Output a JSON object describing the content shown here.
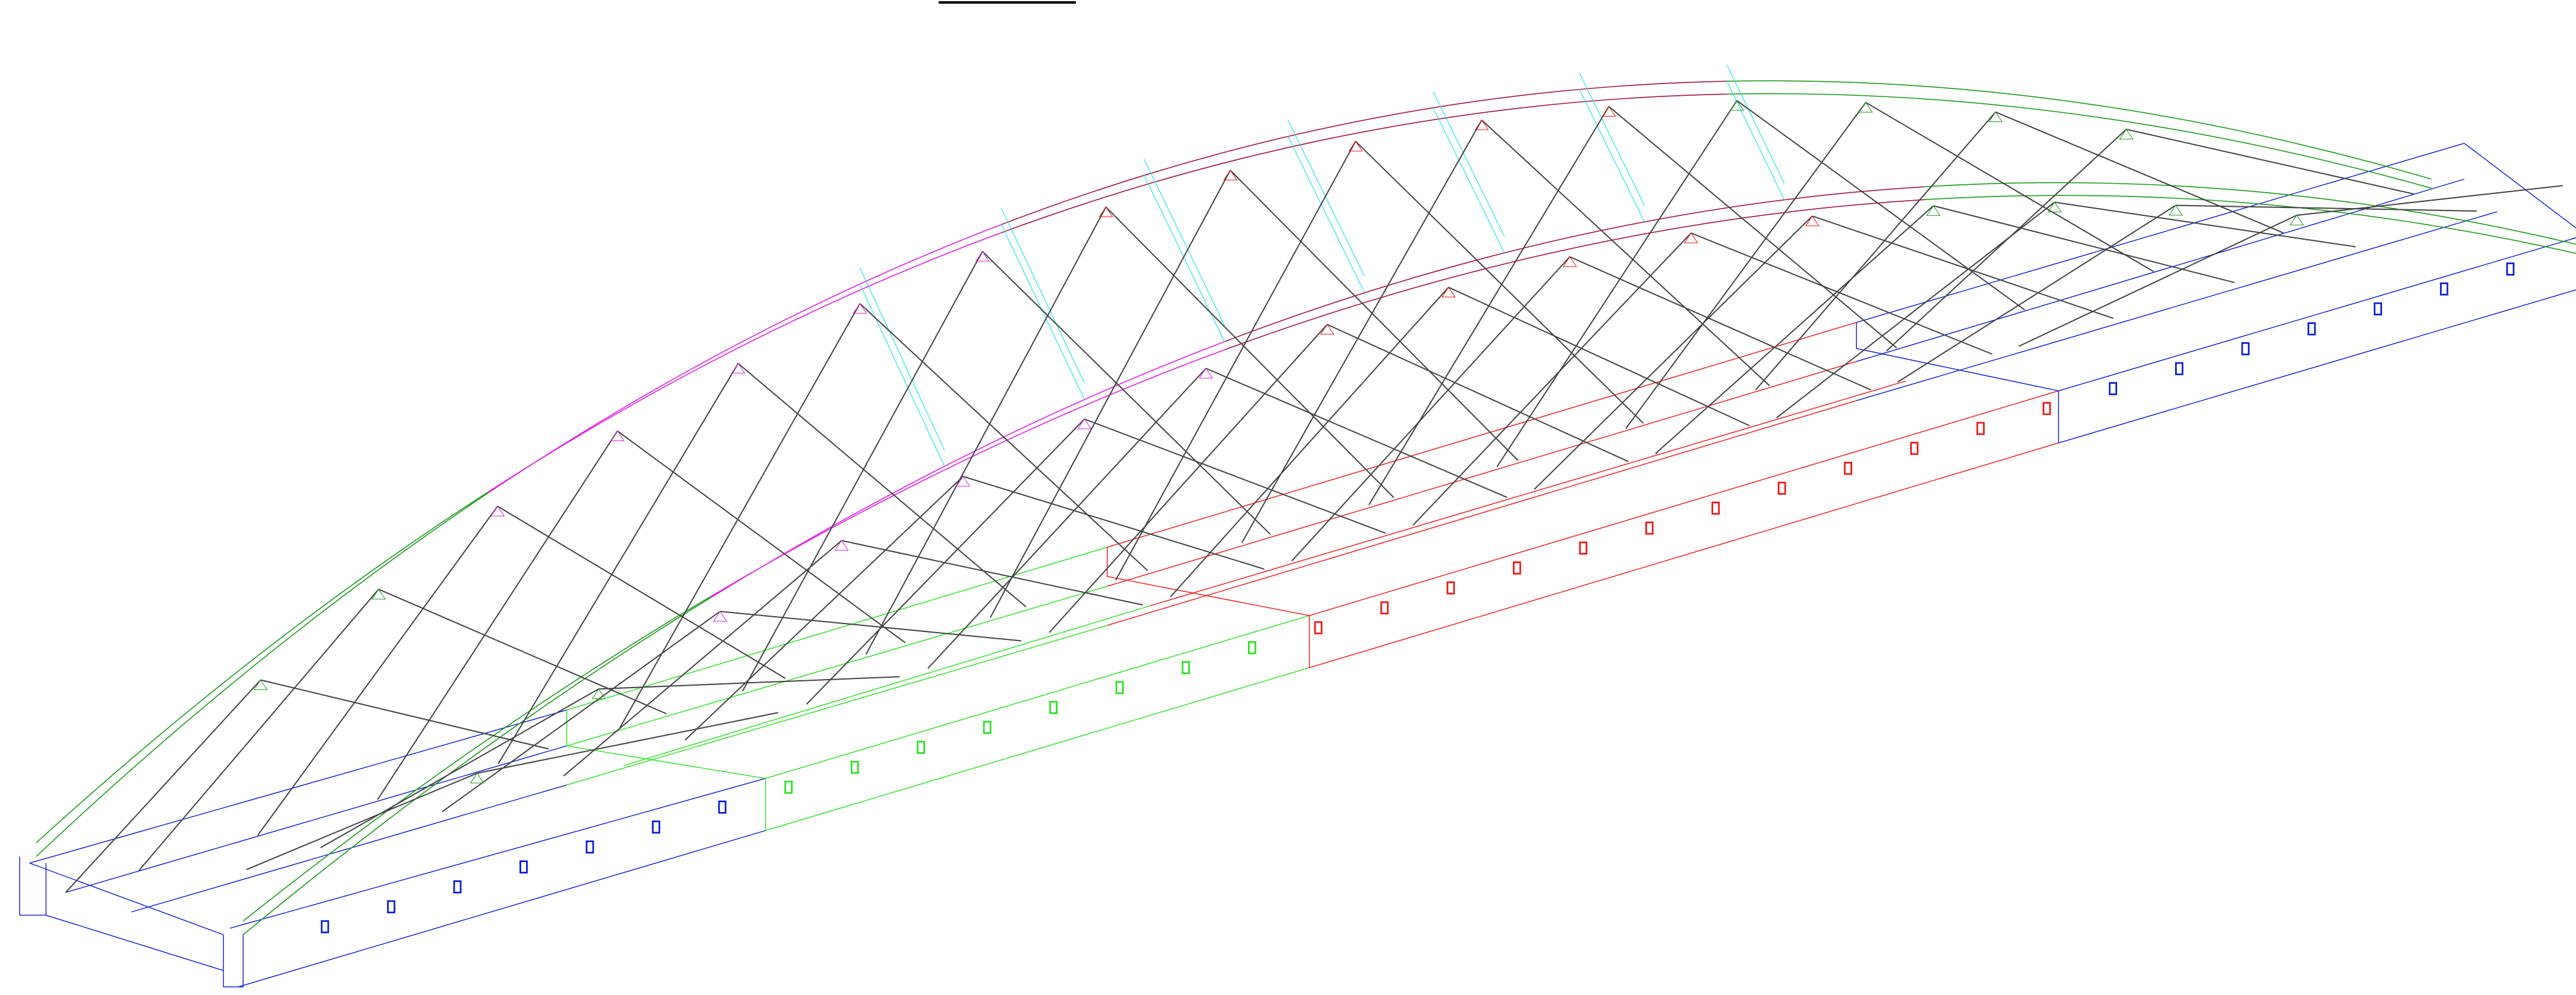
{
  "palette": {
    "background": "#ffffff",
    "end_segment": "#0a1bd6",
    "quarter_segment": "#27e31f",
    "center_segment": "#f21515",
    "arch_end": "#1d9a1d",
    "arch_quarter": "#e11fe1",
    "arch_center": "#a3163f",
    "hangers": "#444444",
    "wind_bracing": "#22e6ee"
  },
  "icons": {
    "hanger_anchor": "hanger-anchor-icon",
    "deck_bolt": "deck-bolt-icon"
  }
}
